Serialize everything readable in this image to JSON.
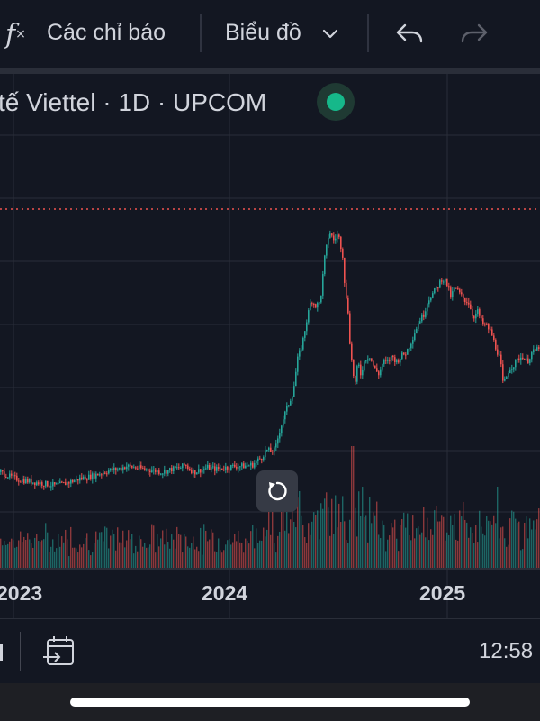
{
  "toolbar": {
    "indicators_icon": "function-fx-icon",
    "indicators_label": "Các chỉ báo",
    "chart_type_label": "Biểu đồ",
    "chart_type_icon": "chevron-down-icon",
    "undo_icon": "undo-arrow-icon",
    "redo_icon": "redo-arrow-icon"
  },
  "symbol": {
    "title": "tế Viettel · 1D · UPCOM",
    "status_color": "#16b88a"
  },
  "colors": {
    "background": "#131722",
    "up": "#26a69a",
    "down": "#ef5350",
    "price_line": "#ef5350",
    "grid": "#2a2e39"
  },
  "chart": {
    "x_labels": [
      "2023",
      "2024",
      "2025"
    ],
    "reset_icon": "reset-rotate-icon"
  },
  "bottom": {
    "date_range_icon": "calendar-goto-icon",
    "time": "12:58"
  },
  "chart_data": {
    "type": "candlestick",
    "title": "",
    "x_ticks": [
      "2023",
      "2024",
      "2025"
    ],
    "price_series": {
      "name": "",
      "points": [
        [
          0,
          0.14
        ],
        [
          10,
          0.125
        ],
        [
          20,
          0.115
        ],
        [
          30,
          0.11
        ],
        [
          40,
          0.105
        ],
        [
          50,
          0.1
        ],
        [
          60,
          0.095
        ],
        [
          70,
          0.1
        ],
        [
          80,
          0.11
        ],
        [
          90,
          0.12
        ],
        [
          100,
          0.125
        ],
        [
          110,
          0.135
        ],
        [
          120,
          0.145
        ],
        [
          130,
          0.15
        ],
        [
          140,
          0.16
        ],
        [
          150,
          0.155
        ],
        [
          160,
          0.15
        ],
        [
          170,
          0.145
        ],
        [
          180,
          0.14
        ],
        [
          190,
          0.15
        ],
        [
          200,
          0.155
        ],
        [
          205,
          0.165
        ],
        [
          210,
          0.15
        ],
        [
          215,
          0.14
        ],
        [
          220,
          0.145
        ],
        [
          230,
          0.155
        ],
        [
          240,
          0.15
        ],
        [
          250,
          0.155
        ],
        [
          260,
          0.16
        ],
        [
          270,
          0.16
        ],
        [
          280,
          0.165
        ],
        [
          290,
          0.19
        ],
        [
          295,
          0.215
        ],
        [
          300,
          0.21
        ],
        [
          305,
          0.215
        ],
        [
          310,
          0.28
        ],
        [
          315,
          0.33
        ],
        [
          320,
          0.37
        ],
        [
          325,
          0.41
        ],
        [
          330,
          0.52
        ],
        [
          335,
          0.57
        ],
        [
          340,
          0.65
        ],
        [
          345,
          0.72
        ],
        [
          350,
          0.7
        ],
        [
          355,
          0.71
        ],
        [
          360,
          0.86
        ],
        [
          365,
          0.95
        ],
        [
          370,
          0.92
        ],
        [
          375,
          0.94
        ],
        [
          378,
          0.9
        ],
        [
          380,
          0.87
        ],
        [
          383,
          0.74
        ],
        [
          386,
          0.68
        ],
        [
          388,
          0.58
        ],
        [
          391,
          0.48
        ],
        [
          394,
          0.44
        ],
        [
          397,
          0.51
        ],
        [
          400,
          0.47
        ],
        [
          405,
          0.52
        ],
        [
          410,
          0.53
        ],
        [
          415,
          0.49
        ],
        [
          420,
          0.47
        ],
        [
          425,
          0.51
        ],
        [
          430,
          0.51
        ],
        [
          435,
          0.53
        ],
        [
          440,
          0.51
        ],
        [
          445,
          0.53
        ],
        [
          450,
          0.54
        ],
        [
          455,
          0.57
        ],
        [
          460,
          0.61
        ],
        [
          465,
          0.65
        ],
        [
          470,
          0.67
        ],
        [
          475,
          0.72
        ],
        [
          480,
          0.74
        ],
        [
          485,
          0.76
        ],
        [
          490,
          0.79
        ],
        [
          495,
          0.78
        ],
        [
          500,
          0.73
        ],
        [
          505,
          0.76
        ],
        [
          510,
          0.74
        ],
        [
          515,
          0.72
        ],
        [
          520,
          0.71
        ],
        [
          525,
          0.66
        ],
        [
          530,
          0.68
        ],
        [
          535,
          0.64
        ],
        [
          540,
          0.63
        ],
        [
          545,
          0.61
        ],
        [
          550,
          0.56
        ],
        [
          555,
          0.52
        ],
        [
          558,
          0.44
        ],
        [
          561,
          0.45
        ],
        [
          565,
          0.49
        ],
        [
          570,
          0.5
        ],
        [
          575,
          0.52
        ],
        [
          580,
          0.53
        ],
        [
          585,
          0.51
        ],
        [
          590,
          0.54
        ],
        [
          595,
          0.55
        ],
        [
          600,
          0.57
        ]
      ]
    },
    "volume_series": {
      "name": "",
      "note_levels": "relative"
    },
    "grid": true,
    "last_price_line": true
  }
}
